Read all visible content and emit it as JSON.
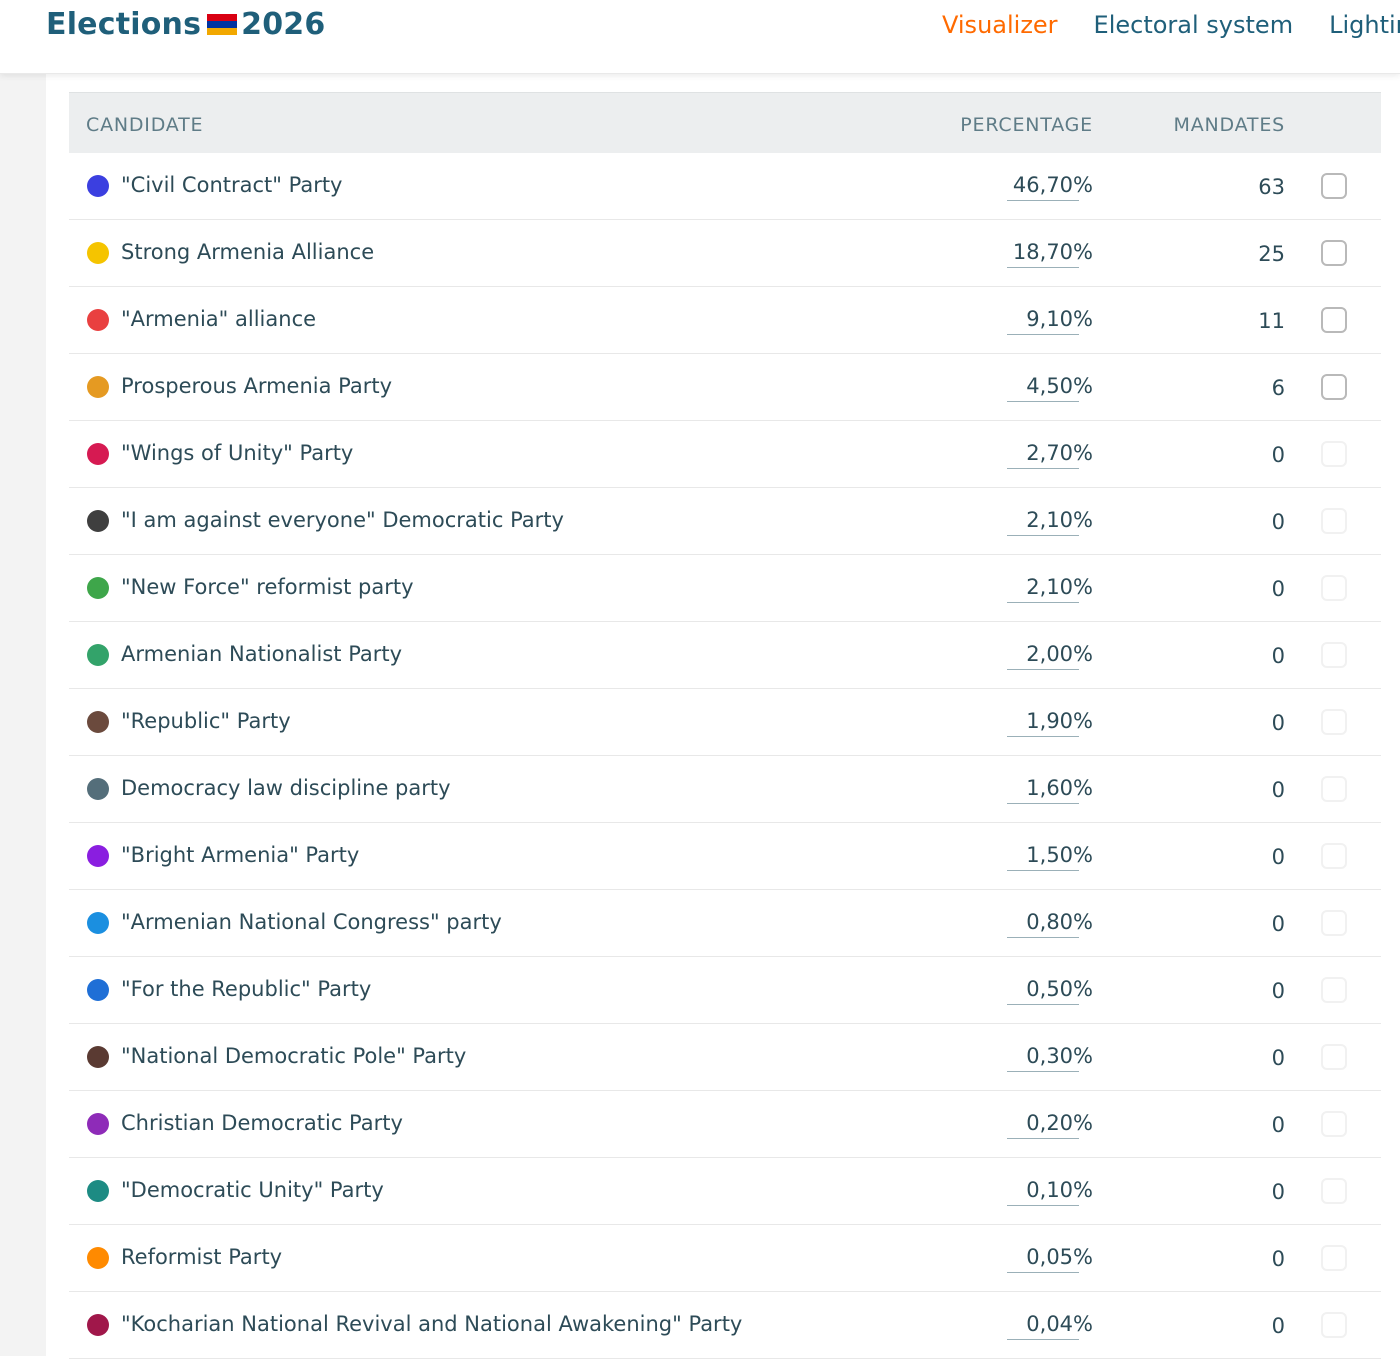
{
  "header": {
    "brand_left": "Elections",
    "brand_right": "2026",
    "flag_colors": [
      "#d90012",
      "#0033a0",
      "#f2a800"
    ],
    "nav": [
      {
        "label": "Visualizer",
        "active": true
      },
      {
        "label": "Electoral system",
        "active": false
      },
      {
        "label": "Lighting",
        "active": false
      }
    ]
  },
  "table": {
    "headers": {
      "candidate": "CANDIDATE",
      "percentage": "PERCENTAGE",
      "mandates": "MANDATES"
    },
    "rows": [
      {
        "name": "\"Civil Contract\" Party",
        "percentage": "46,70%",
        "mandates": "63",
        "color": "#3b3fe0",
        "enabled": true
      },
      {
        "name": "Strong Armenia Alliance",
        "percentage": "18,70%",
        "mandates": "25",
        "color": "#f5c400",
        "enabled": true
      },
      {
        "name": "\"Armenia\" alliance",
        "percentage": "9,10%",
        "mandates": "11",
        "color": "#e94040",
        "enabled": true
      },
      {
        "name": "Prosperous Armenia Party",
        "percentage": "4,50%",
        "mandates": "6",
        "color": "#e59a22",
        "enabled": true
      },
      {
        "name": "\"Wings of Unity\" Party",
        "percentage": "2,70%",
        "mandates": "0",
        "color": "#d61a52",
        "enabled": false
      },
      {
        "name": "\"I am against everyone\" Democratic Party",
        "percentage": "2,10%",
        "mandates": "0",
        "color": "#3f3f3f",
        "enabled": false
      },
      {
        "name": "\"New Force\" reformist party",
        "percentage": "2,10%",
        "mandates": "0",
        "color": "#3ea64a",
        "enabled": false
      },
      {
        "name": "Armenian Nationalist Party",
        "percentage": "2,00%",
        "mandates": "0",
        "color": "#33a36a",
        "enabled": false
      },
      {
        "name": "\"Republic\" Party",
        "percentage": "1,90%",
        "mandates": "0",
        "color": "#6b4a3d",
        "enabled": false
      },
      {
        "name": "Democracy law discipline party",
        "percentage": "1,60%",
        "mandates": "0",
        "color": "#546e7a",
        "enabled": false
      },
      {
        "name": "\"Bright Armenia\" Party",
        "percentage": "1,50%",
        "mandates": "0",
        "color": "#8a1ee0",
        "enabled": false
      },
      {
        "name": "\"Armenian National Congress\" party",
        "percentage": "0,80%",
        "mandates": "0",
        "color": "#1b8fe0",
        "enabled": false
      },
      {
        "name": "\"For the Republic\" Party",
        "percentage": "0,50%",
        "mandates": "0",
        "color": "#1f6fd6",
        "enabled": false
      },
      {
        "name": "\"National Democratic Pole\" Party",
        "percentage": "0,30%",
        "mandates": "0",
        "color": "#5a3a32",
        "enabled": false
      },
      {
        "name": "Christian Democratic Party",
        "percentage": "0,20%",
        "mandates": "0",
        "color": "#8e2bb8",
        "enabled": false
      },
      {
        "name": "\"Democratic Unity\" Party",
        "percentage": "0,10%",
        "mandates": "0",
        "color": "#1d8b83",
        "enabled": false
      },
      {
        "name": "Reformist Party",
        "percentage": "0,05%",
        "mandates": "0",
        "color": "#ff8a00",
        "enabled": false
      },
      {
        "name": "\"Kocharian National Revival and National Awakening\" Party",
        "percentage": "0,04%",
        "mandates": "0",
        "color": "#a0174a",
        "enabled": false
      }
    ]
  }
}
